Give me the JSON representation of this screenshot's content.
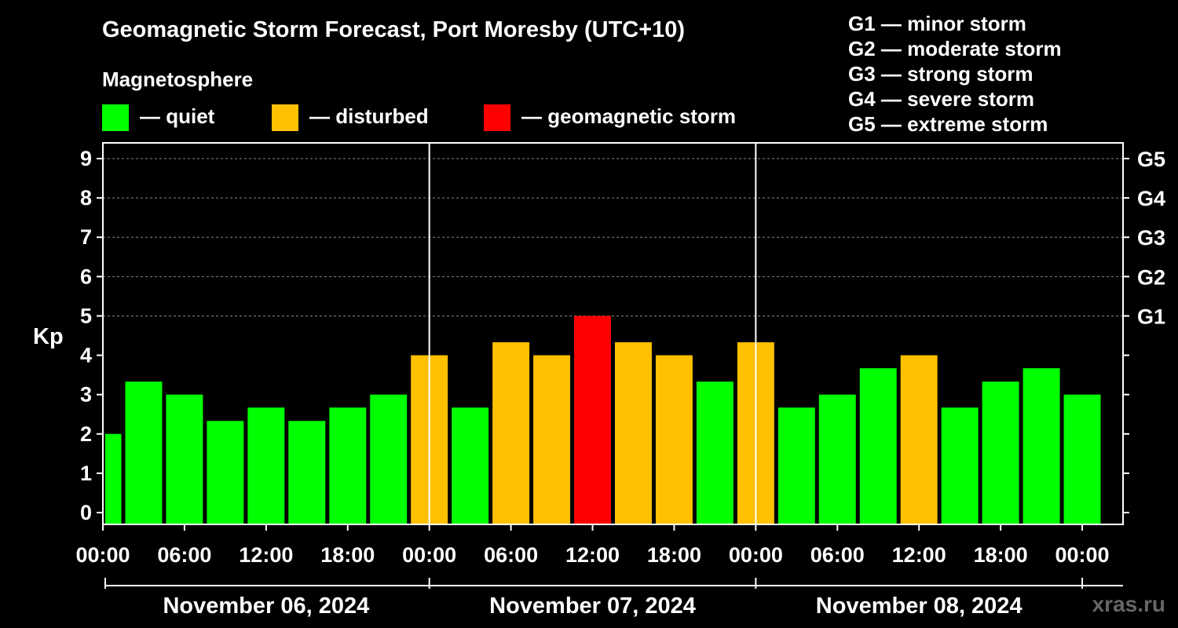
{
  "title": "Geomagnetic Storm Forecast, Port Moresby (UTC+10)",
  "subtitle": "Magnetosphere",
  "legend": [
    {
      "label": "— quiet",
      "color": "#00ff00"
    },
    {
      "label": "— disturbed",
      "color": "#ffc000"
    },
    {
      "label": "— geomagnetic storm",
      "color": "#ff0000"
    }
  ],
  "g_scale": [
    "G1 — minor storm",
    "G2 — moderate storm",
    "G3 — strong storm",
    "G4 — severe storm",
    "G5 — extreme storm"
  ],
  "watermark": "xras.ru",
  "colors": {
    "quiet": "#00ff00",
    "disturbed": "#ffc000",
    "storm": "#ff0000",
    "background": "#000000",
    "foreground": "#ffffff",
    "grid": "#888888"
  },
  "chart_data": {
    "type": "bar",
    "title": "Geomagnetic Storm Forecast, Port Moresby (UTC+10)",
    "ylabel": "Kp",
    "ylim": [
      -0.3,
      9.4
    ],
    "yticks": [
      0,
      1,
      2,
      3,
      4,
      5,
      6,
      7,
      8,
      9
    ],
    "right_axis_labels": [
      {
        "kp": 5,
        "label": "G1"
      },
      {
        "kp": 6,
        "label": "G2"
      },
      {
        "kp": 7,
        "label": "G3"
      },
      {
        "kp": 8,
        "label": "G4"
      },
      {
        "kp": 9,
        "label": "G5"
      }
    ],
    "grid": true,
    "x_tick_labels": [
      "00:00",
      "06:00",
      "12:00",
      "18:00",
      "00:00",
      "06:00",
      "12:00",
      "18:00",
      "00:00",
      "06:00",
      "12:00",
      "18:00",
      "00:00"
    ],
    "dates": [
      "November 06, 2024",
      "November 07, 2024",
      "November 08, 2024"
    ],
    "interval_hours": 3,
    "values": [
      2.0,
      3.33,
      3.0,
      2.33,
      2.67,
      2.33,
      2.67,
      3.0,
      4.0,
      2.67,
      4.33,
      4.0,
      5.0,
      4.33,
      4.0,
      3.33,
      4.33,
      2.67,
      3.0,
      3.67,
      4.0,
      2.67,
      3.33,
      3.67,
      3.0
    ],
    "categories": [
      "quiet",
      "quiet",
      "quiet",
      "quiet",
      "quiet",
      "quiet",
      "quiet",
      "quiet",
      "disturbed",
      "quiet",
      "disturbed",
      "disturbed",
      "storm",
      "disturbed",
      "disturbed",
      "quiet",
      "disturbed",
      "quiet",
      "quiet",
      "quiet",
      "disturbed",
      "quiet",
      "quiet",
      "quiet",
      "quiet"
    ]
  }
}
